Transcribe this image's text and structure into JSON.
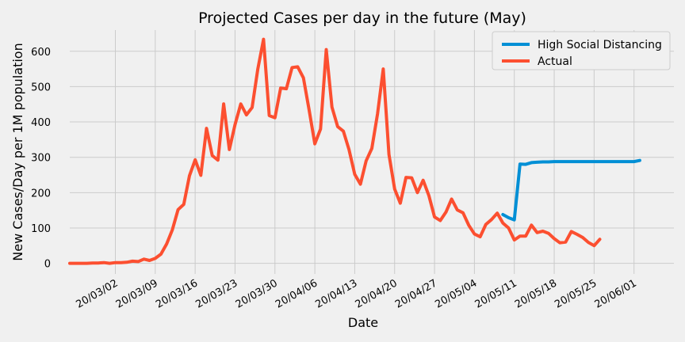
{
  "chart_data": {
    "type": "line",
    "title": "Projected Cases per day in the future (May)",
    "xlabel": "Date",
    "ylabel": "New Cases/Day per 1M population",
    "x_axis_type": "date",
    "xlim": [
      "2020-02-23",
      "2020-06-08"
    ],
    "ylim": [
      -30,
      660
    ],
    "y_ticks": [
      0,
      100,
      200,
      300,
      400,
      500,
      600
    ],
    "x_ticks": [
      {
        "date": "2020-03-02",
        "label": "20/03/02"
      },
      {
        "date": "2020-03-09",
        "label": "20/03/09"
      },
      {
        "date": "2020-03-16",
        "label": "20/03/16"
      },
      {
        "date": "2020-03-23",
        "label": "20/03/23"
      },
      {
        "date": "2020-03-30",
        "label": "20/03/30"
      },
      {
        "date": "2020-04-06",
        "label": "20/04/06"
      },
      {
        "date": "2020-04-13",
        "label": "20/04/13"
      },
      {
        "date": "2020-04-20",
        "label": "20/04/20"
      },
      {
        "date": "2020-04-27",
        "label": "20/04/27"
      },
      {
        "date": "2020-05-04",
        "label": "20/05/04"
      },
      {
        "date": "2020-05-11",
        "label": "20/05/11"
      },
      {
        "date": "2020-05-18",
        "label": "20/05/18"
      },
      {
        "date": "2020-05-25",
        "label": "20/05/25"
      },
      {
        "date": "2020-06-01",
        "label": "20/06/01"
      }
    ],
    "grid": true,
    "legend_position": "top-right",
    "series": [
      {
        "name": "High Social Distancing",
        "color": "#008fd5",
        "points": [
          [
            "2020-05-09",
            138
          ],
          [
            "2020-05-10",
            129
          ],
          [
            "2020-05-11",
            123
          ],
          [
            "2020-05-12",
            281
          ],
          [
            "2020-05-13",
            280
          ],
          [
            "2020-05-14",
            285
          ],
          [
            "2020-05-15",
            286
          ],
          [
            "2020-05-16",
            287
          ],
          [
            "2020-05-17",
            287
          ],
          [
            "2020-05-18",
            288
          ],
          [
            "2020-05-19",
            288
          ],
          [
            "2020-05-20",
            288
          ],
          [
            "2020-05-21",
            288
          ],
          [
            "2020-05-22",
            288
          ],
          [
            "2020-05-23",
            288
          ],
          [
            "2020-05-24",
            288
          ],
          [
            "2020-05-25",
            288
          ],
          [
            "2020-05-26",
            288
          ],
          [
            "2020-05-27",
            288
          ],
          [
            "2020-05-28",
            288
          ],
          [
            "2020-05-29",
            288
          ],
          [
            "2020-05-30",
            288
          ],
          [
            "2020-05-31",
            288
          ],
          [
            "2020-06-01",
            288
          ],
          [
            "2020-06-02",
            291
          ]
        ]
      },
      {
        "name": "Actual",
        "color": "#fc4f30",
        "points": [
          [
            "2020-02-23",
            0
          ],
          [
            "2020-02-24",
            0
          ],
          [
            "2020-02-25",
            0
          ],
          [
            "2020-02-26",
            0
          ],
          [
            "2020-02-27",
            1
          ],
          [
            "2020-02-28",
            1
          ],
          [
            "2020-02-29",
            2
          ],
          [
            "2020-03-01",
            0
          ],
          [
            "2020-03-02",
            2
          ],
          [
            "2020-03-03",
            2
          ],
          [
            "2020-03-04",
            3
          ],
          [
            "2020-03-05",
            6
          ],
          [
            "2020-03-06",
            5
          ],
          [
            "2020-03-07",
            12
          ],
          [
            "2020-03-08",
            8
          ],
          [
            "2020-03-09",
            14
          ],
          [
            "2020-03-10",
            26
          ],
          [
            "2020-03-11",
            55
          ],
          [
            "2020-03-12",
            95
          ],
          [
            "2020-03-13",
            152
          ],
          [
            "2020-03-14",
            167
          ],
          [
            "2020-03-15",
            248
          ],
          [
            "2020-03-16",
            293
          ],
          [
            "2020-03-17",
            249
          ],
          [
            "2020-03-18",
            382
          ],
          [
            "2020-03-19",
            305
          ],
          [
            "2020-03-20",
            292
          ],
          [
            "2020-03-21",
            451
          ],
          [
            "2020-03-22",
            322
          ],
          [
            "2020-03-23",
            393
          ],
          [
            "2020-03-24",
            451
          ],
          [
            "2020-03-25",
            420
          ],
          [
            "2020-03-26",
            441
          ],
          [
            "2020-03-27",
            550
          ],
          [
            "2020-03-28",
            634
          ],
          [
            "2020-03-29",
            418
          ],
          [
            "2020-03-30",
            412
          ],
          [
            "2020-03-31",
            496
          ],
          [
            "2020-04-01",
            494
          ],
          [
            "2020-04-02",
            554
          ],
          [
            "2020-04-03",
            556
          ],
          [
            "2020-04-04",
            525
          ],
          [
            "2020-04-05",
            434
          ],
          [
            "2020-04-06",
            338
          ],
          [
            "2020-04-07",
            380
          ],
          [
            "2020-04-08",
            605
          ],
          [
            "2020-04-09",
            442
          ],
          [
            "2020-04-10",
            387
          ],
          [
            "2020-04-11",
            374
          ],
          [
            "2020-04-12",
            322
          ],
          [
            "2020-04-13",
            252
          ],
          [
            "2020-04-14",
            224
          ],
          [
            "2020-04-15",
            290
          ],
          [
            "2020-04-16",
            325
          ],
          [
            "2020-04-17",
            423
          ],
          [
            "2020-04-18",
            550
          ],
          [
            "2020-04-19",
            308
          ],
          [
            "2020-04-20",
            210
          ],
          [
            "2020-04-21",
            170
          ],
          [
            "2020-04-22",
            243
          ],
          [
            "2020-04-23",
            242
          ],
          [
            "2020-04-24",
            200
          ],
          [
            "2020-04-25",
            235
          ],
          [
            "2020-04-26",
            192
          ],
          [
            "2020-04-27",
            131
          ],
          [
            "2020-04-28",
            121
          ],
          [
            "2020-04-29",
            145
          ],
          [
            "2020-04-30",
            182
          ],
          [
            "2020-05-01",
            151
          ],
          [
            "2020-05-02",
            143
          ],
          [
            "2020-05-03",
            108
          ],
          [
            "2020-05-04",
            83
          ],
          [
            "2020-05-05",
            75
          ],
          [
            "2020-05-06",
            110
          ],
          [
            "2020-05-07",
            124
          ],
          [
            "2020-05-08",
            142
          ],
          [
            "2020-05-09",
            114
          ],
          [
            "2020-05-10",
            100
          ],
          [
            "2020-05-11",
            66
          ],
          [
            "2020-05-12",
            77
          ],
          [
            "2020-05-13",
            77
          ],
          [
            "2020-05-14",
            108
          ],
          [
            "2020-05-15",
            87
          ],
          [
            "2020-05-16",
            91
          ],
          [
            "2020-05-17",
            85
          ],
          [
            "2020-05-18",
            70
          ],
          [
            "2020-05-19",
            58
          ],
          [
            "2020-05-20",
            60
          ],
          [
            "2020-05-21",
            90
          ],
          [
            "2020-05-22",
            82
          ],
          [
            "2020-05-23",
            73
          ],
          [
            "2020-05-24",
            59
          ],
          [
            "2020-05-25",
            50
          ],
          [
            "2020-05-26",
            68
          ]
        ]
      }
    ]
  }
}
